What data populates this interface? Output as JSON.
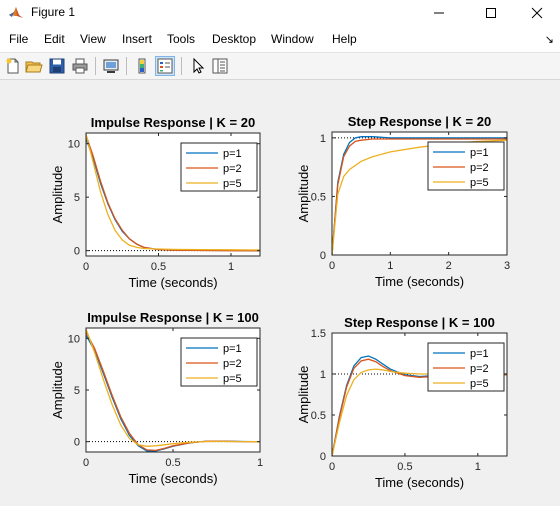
{
  "window": {
    "title": "Figure 1",
    "app_icon": "matlab-icon",
    "controls": [
      "minimize-icon",
      "maximize-icon",
      "close-icon"
    ]
  },
  "menu": {
    "items": [
      {
        "label": "File",
        "name": "menu-file"
      },
      {
        "label": "Edit",
        "name": "menu-edit"
      },
      {
        "label": "View",
        "name": "menu-view"
      },
      {
        "label": "Insert",
        "name": "menu-insert"
      },
      {
        "label": "Tools",
        "name": "menu-tools"
      },
      {
        "label": "Desktop",
        "name": "menu-desktop"
      },
      {
        "label": "Window",
        "name": "menu-window"
      },
      {
        "label": "Help",
        "name": "menu-help"
      }
    ],
    "dock_icon": "dock-arrow-icon"
  },
  "toolbar": {
    "buttons": [
      {
        "name": "new-figure-button",
        "icon": "new-file-icon"
      },
      {
        "name": "open-file-button",
        "icon": "open-folder-icon"
      },
      {
        "name": "save-figure-button",
        "icon": "save-icon"
      },
      {
        "name": "print-figure-button",
        "icon": "print-icon"
      },
      {
        "name": "link-plot-button",
        "icon": "link-plot-icon"
      },
      {
        "name": "colorbar-button",
        "icon": "colorbar-icon"
      },
      {
        "name": "legend-button",
        "icon": "legend-icon",
        "pressed": true
      },
      {
        "name": "edit-plot-button",
        "icon": "pointer-arrow-icon"
      },
      {
        "name": "property-inspector-button",
        "icon": "property-inspector-icon"
      }
    ]
  },
  "chart_data": [
    {
      "type": "line",
      "title": "Impulse Response | K = 20",
      "xlabel": "Time (seconds)",
      "ylabel": "Amplitude",
      "xlim": [
        0,
        1.2
      ],
      "ylim": [
        -0.5,
        11
      ],
      "xticks": [
        0,
        0.5,
        1
      ],
      "yticks": [
        0,
        5,
        10
      ],
      "xtick_labels": [
        "0",
        "0.5",
        "1"
      ],
      "ytick_labels": [
        "0",
        "5",
        "10"
      ],
      "reference_line": 0,
      "legend_position": "top-right",
      "series": [
        {
          "name": "p=1",
          "x": [
            0,
            0.05,
            0.1,
            0.15,
            0.2,
            0.25,
            0.3,
            0.35,
            0.4,
            0.5,
            0.6,
            0.8,
            1.0,
            1.2
          ],
          "y": [
            10.5,
            8.6,
            6.3,
            4.4,
            2.9,
            1.8,
            1.1,
            0.6,
            0.3,
            0.1,
            0.05,
            0.02,
            0.01,
            0
          ]
        },
        {
          "name": "p=2",
          "x": [
            0,
            0.05,
            0.1,
            0.15,
            0.2,
            0.25,
            0.3,
            0.35,
            0.4,
            0.5,
            0.6,
            0.8,
            1.0,
            1.2
          ],
          "y": [
            10.8,
            8.8,
            6.5,
            4.5,
            3.0,
            1.9,
            1.1,
            0.6,
            0.3,
            0.1,
            0.04,
            0.01,
            0,
            0
          ]
        },
        {
          "name": "p=5",
          "x": [
            0,
            0.05,
            0.1,
            0.15,
            0.2,
            0.25,
            0.3,
            0.35,
            0.4,
            0.5,
            0.6,
            0.8,
            1.0,
            1.2
          ],
          "y": [
            10.9,
            8.2,
            5.5,
            3.4,
            1.9,
            1.0,
            0.5,
            0.3,
            0.2,
            0.15,
            0.12,
            0.1,
            0.08,
            0.06
          ]
        }
      ]
    },
    {
      "type": "line",
      "title": "Step Response | K = 20",
      "xlabel": "Time (seconds)",
      "ylabel": "Amplitude",
      "xlim": [
        0,
        3
      ],
      "ylim": [
        0,
        1.05
      ],
      "xticks": [
        0,
        1,
        2,
        3
      ],
      "yticks": [
        0,
        0.5,
        1
      ],
      "xtick_labels": [
        "0",
        "1",
        "2",
        "3"
      ],
      "ytick_labels": [
        "0",
        "0.5",
        "1"
      ],
      "reference_line": 1,
      "legend_position": "top-right",
      "series": [
        {
          "name": "p=1",
          "x": [
            0,
            0.1,
            0.2,
            0.3,
            0.4,
            0.5,
            0.7,
            1.0,
            1.5,
            2.0,
            3.0
          ],
          "y": [
            0,
            0.62,
            0.86,
            0.96,
            1.0,
            1.01,
            1.01,
            1.0,
            1.0,
            1.0,
            1.0
          ]
        },
        {
          "name": "p=2",
          "x": [
            0,
            0.1,
            0.2,
            0.3,
            0.4,
            0.5,
            0.7,
            1.0,
            1.5,
            2.0,
            3.0
          ],
          "y": [
            0,
            0.6,
            0.84,
            0.93,
            0.97,
            0.98,
            0.99,
            0.99,
            0.99,
            0.99,
            0.99
          ]
        },
        {
          "name": "p=5",
          "x": [
            0,
            0.1,
            0.2,
            0.3,
            0.5,
            0.7,
            1.0,
            1.5,
            2.0,
            2.5,
            3.0
          ],
          "y": [
            0,
            0.52,
            0.67,
            0.73,
            0.8,
            0.84,
            0.88,
            0.92,
            0.95,
            0.97,
            0.98
          ]
        }
      ]
    },
    {
      "type": "line",
      "title": "Impulse Response | K = 100",
      "xlabel": "Time (seconds)",
      "ylabel": "Amplitude",
      "xlim": [
        0,
        1
      ],
      "ylim": [
        -1,
        11
      ],
      "xticks": [
        0,
        0.5,
        1
      ],
      "yticks": [
        0,
        5,
        10
      ],
      "xtick_labels": [
        "0",
        "0.5",
        "1"
      ],
      "ytick_labels": [
        "0",
        "5",
        "10"
      ],
      "reference_line": 0,
      "legend_position": "top-right",
      "series": [
        {
          "name": "p=1",
          "x": [
            0,
            0.05,
            0.1,
            0.15,
            0.2,
            0.25,
            0.3,
            0.35,
            0.4,
            0.45,
            0.5,
            0.6,
            0.7,
            0.8,
            0.9,
            1.0
          ],
          "y": [
            10.3,
            8.8,
            6.6,
            4.3,
            2.2,
            0.6,
            -0.4,
            -0.9,
            -0.9,
            -0.7,
            -0.45,
            -0.1,
            0.05,
            0.05,
            0.02,
            0
          ]
        },
        {
          "name": "p=2",
          "x": [
            0,
            0.05,
            0.1,
            0.15,
            0.2,
            0.25,
            0.3,
            0.35,
            0.4,
            0.45,
            0.5,
            0.6,
            0.7,
            0.8,
            0.9,
            1.0
          ],
          "y": [
            10.6,
            9.0,
            6.8,
            4.5,
            2.4,
            0.8,
            -0.3,
            -0.8,
            -0.85,
            -0.65,
            -0.4,
            -0.1,
            0.05,
            0.04,
            0.01,
            0
          ]
        },
        {
          "name": "p=5",
          "x": [
            0,
            0.05,
            0.1,
            0.15,
            0.2,
            0.25,
            0.3,
            0.35,
            0.4,
            0.45,
            0.5,
            0.6,
            0.7,
            0.8,
            0.9,
            1.0
          ],
          "y": [
            10.9,
            8.6,
            6.0,
            3.6,
            1.6,
            0.3,
            -0.3,
            -0.45,
            -0.4,
            -0.3,
            -0.2,
            -0.05,
            0.02,
            0.02,
            0.01,
            0
          ]
        }
      ]
    },
    {
      "type": "line",
      "title": "Step Response | K = 100",
      "xlabel": "Time (seconds)",
      "ylabel": "Amplitude",
      "xlim": [
        0,
        1.2
      ],
      "ylim": [
        0,
        1.5
      ],
      "xticks": [
        0,
        0.5,
        1
      ],
      "yticks": [
        0,
        0.5,
        1,
        1.5
      ],
      "xtick_labels": [
        "0",
        "0.5",
        "1"
      ],
      "ytick_labels": [
        "0",
        "0.5",
        "1",
        "1.5"
      ],
      "reference_line": 1,
      "legend_position": "top-right",
      "series": [
        {
          "name": "p=1",
          "x": [
            0,
            0.05,
            0.1,
            0.15,
            0.2,
            0.25,
            0.3,
            0.35,
            0.4,
            0.5,
            0.6,
            0.7,
            0.8,
            1.0,
            1.2
          ],
          "y": [
            0,
            0.48,
            0.86,
            1.1,
            1.2,
            1.22,
            1.18,
            1.12,
            1.06,
            0.99,
            0.97,
            0.98,
            0.99,
            1.0,
            1.0
          ]
        },
        {
          "name": "p=2",
          "x": [
            0,
            0.05,
            0.1,
            0.15,
            0.2,
            0.25,
            0.3,
            0.35,
            0.4,
            0.5,
            0.6,
            0.7,
            0.8,
            1.0,
            1.2
          ],
          "y": [
            0,
            0.46,
            0.84,
            1.07,
            1.16,
            1.18,
            1.15,
            1.09,
            1.04,
            0.98,
            0.96,
            0.97,
            0.98,
            0.99,
            0.99
          ]
        },
        {
          "name": "p=5",
          "x": [
            0,
            0.05,
            0.1,
            0.15,
            0.2,
            0.25,
            0.3,
            0.35,
            0.4,
            0.5,
            0.6,
            0.7,
            0.8,
            1.0,
            1.2
          ],
          "y": [
            0,
            0.4,
            0.74,
            0.93,
            1.02,
            1.05,
            1.06,
            1.05,
            1.03,
            1.01,
            1.0,
            1.0,
            1.0,
            1.0,
            1.0
          ]
        }
      ]
    }
  ],
  "colors": {
    "p1": "#0072bd",
    "p2": "#d95319",
    "p5": "#edb120",
    "figure_bg": "#f0f0f0",
    "axes_bg": "#ffffff"
  }
}
